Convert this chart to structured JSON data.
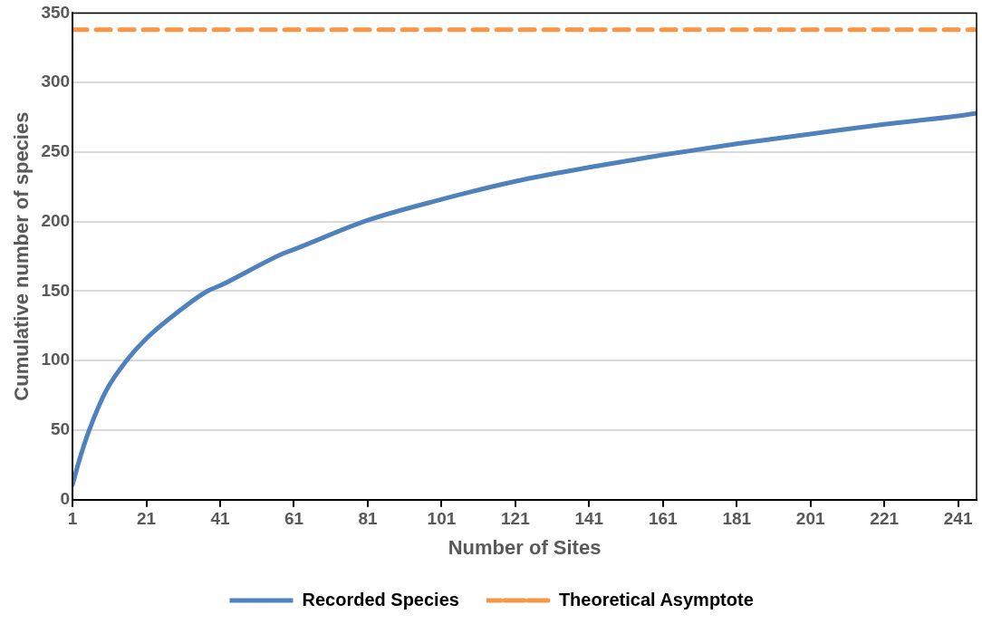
{
  "chart_data": {
    "type": "line",
    "xlabel": "Number of Sites",
    "ylabel": "Cumulative number of species",
    "xlim": [
      1,
      246
    ],
    "xticks": [
      1,
      21,
      41,
      61,
      81,
      101,
      121,
      141,
      161,
      181,
      201,
      221,
      241
    ],
    "ylim": [
      0,
      350
    ],
    "yticks": [
      0,
      50,
      100,
      150,
      200,
      250,
      300,
      350
    ],
    "grid": "y",
    "legend": "bottom",
    "marker": "none",
    "series": [
      {
        "name": "Recorded Species",
        "color": "#4f81bd",
        "line_style": "solid",
        "x": [
          1,
          3,
          5.5,
          10,
          15.6,
          21,
          30,
          37.5,
          41,
          58,
          61,
          81,
          101,
          121,
          141,
          161,
          181,
          201,
          221,
          241,
          246
        ],
        "values": [
          11,
          30,
          50,
          78,
          100,
          116,
          136,
          150,
          154,
          177,
          180,
          201,
          216,
          229,
          239,
          248,
          256,
          263,
          270,
          276,
          278
        ]
      },
      {
        "name": "Theoretical Asymptote",
        "color": "#f79646",
        "line_style": "dashed",
        "x": [
          1,
          246
        ],
        "values": [
          338,
          338
        ]
      }
    ]
  }
}
